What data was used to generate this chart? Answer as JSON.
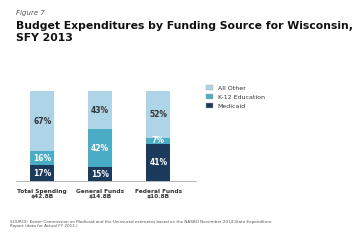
{
  "title_fig": "Figure 7",
  "title_main": "Budget Expenditures by Funding Source for Wisconsin,\nSFY 2013",
  "categories": [
    "Total Spending\n$42.8B",
    "General Funds\n$14.8B",
    "Federal Funds\n$10.8B"
  ],
  "medicaid": [
    17,
    15,
    41
  ],
  "k12": [
    16,
    42,
    7
  ],
  "other": [
    67,
    43,
    52
  ],
  "medicaid_labels": [
    "17%",
    "15%",
    "41%"
  ],
  "k12_labels": [
    "16%",
    "42%",
    "7%"
  ],
  "other_labels": [
    "67%",
    "43%",
    "52%"
  ],
  "color_medicaid": "#1b3a5c",
  "color_k12": "#4bacc6",
  "color_other": "#aed4e8",
  "legend_labels": [
    "All Other",
    "K-12 Education",
    "Medicaid"
  ],
  "source_text": "SOURCE: Kaiser Commission on Medicaid and the Uninsured estimates based on the NASBO November 2014 State Expenditure\nReport (data for Actual FY 2013.)",
  "bar_width": 0.42,
  "ylim": [
    0,
    105
  ]
}
